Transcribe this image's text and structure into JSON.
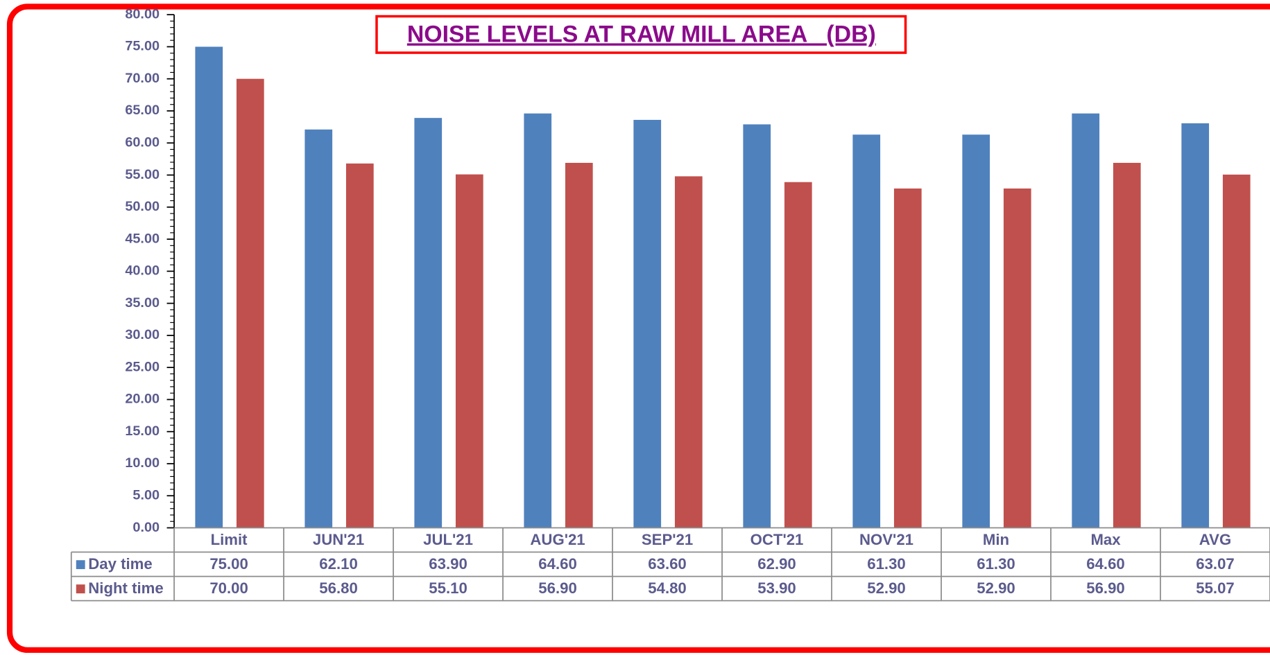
{
  "chart_data": {
    "type": "bar",
    "title": "NOISE LEVELS AT RAW MILL AREA   (DB)",
    "categories": [
      "Limit",
      "JUN'21",
      "JUL'21",
      "AUG'21",
      "SEP'21",
      "OCT'21",
      "NOV'21",
      "Min",
      "Max",
      "AVG"
    ],
    "series": [
      {
        "name": "Day time",
        "color": "#4f81bd",
        "values": [
          75,
          62.1,
          63.9,
          64.6,
          63.6,
          62.9,
          61.3,
          61.3,
          64.6,
          63.07
        ],
        "value_labels": [
          "75.00",
          "62.10",
          "63.90",
          "64.60",
          "63.60",
          "62.90",
          "61.30",
          "61.30",
          "64.60",
          "63.07"
        ]
      },
      {
        "name": "Night time",
        "color": "#c0504d",
        "values": [
          70,
          56.8,
          55.1,
          56.9,
          54.8,
          53.9,
          52.9,
          52.9,
          56.9,
          55.07
        ],
        "value_labels": [
          "70.00",
          "56.80",
          "55.10",
          "56.90",
          "54.80",
          "53.90",
          "52.90",
          "52.90",
          "56.90",
          "55.07"
        ]
      }
    ],
    "ylim": [
      0,
      80
    ],
    "yticks": [
      {
        "value": 0,
        "label": "0.00"
      },
      {
        "value": 5,
        "label": "5.00"
      },
      {
        "value": 10,
        "label": "10.00"
      },
      {
        "value": 15,
        "label": "15.00"
      },
      {
        "value": 20,
        "label": "20.00"
      },
      {
        "value": 25,
        "label": "25.00"
      },
      {
        "value": 30,
        "label": "30.00"
      },
      {
        "value": 35,
        "label": "35.00"
      },
      {
        "value": 40,
        "label": "40.00"
      },
      {
        "value": 45,
        "label": "45.00"
      },
      {
        "value": 50,
        "label": "50.00"
      },
      {
        "value": 55,
        "label": "55.00"
      },
      {
        "value": 60,
        "label": "60.00"
      },
      {
        "value": 65,
        "label": "65.00"
      },
      {
        "value": 70,
        "label": "70.00"
      },
      {
        "value": 75,
        "label": "75.00"
      },
      {
        "value": 80,
        "label": "80.00"
      }
    ],
    "grid": false,
    "legend": "table"
  }
}
